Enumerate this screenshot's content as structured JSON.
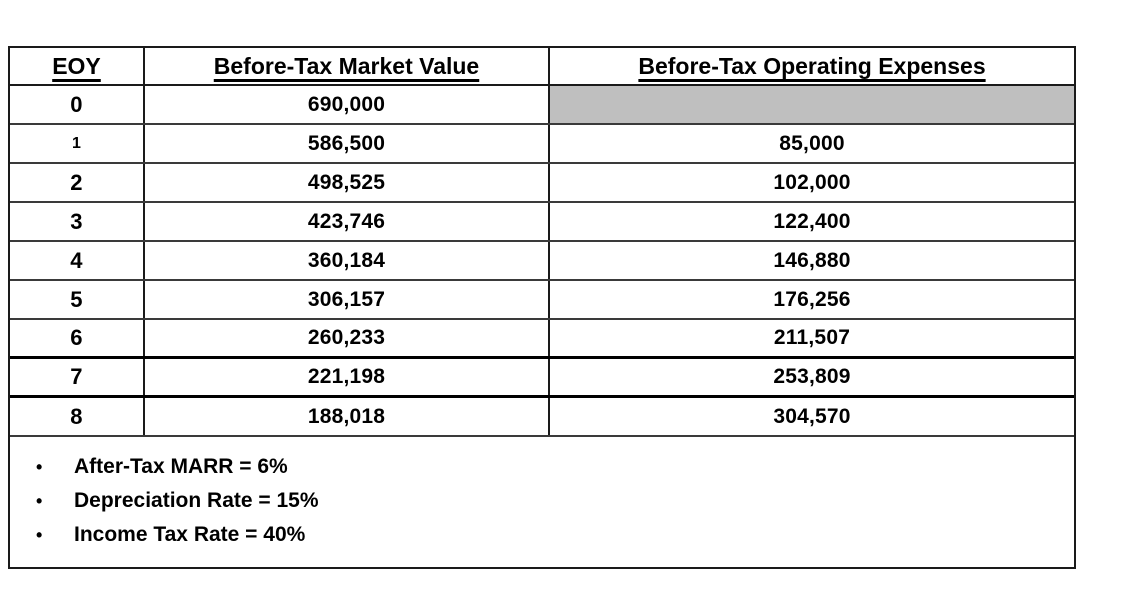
{
  "table": {
    "columns": [
      "EOY",
      "Before-Tax Market Value",
      "Before-Tax Operating Expenses"
    ],
    "rows": [
      {
        "eoy": "0",
        "market_value": "690,000",
        "operating_expenses": ""
      },
      {
        "eoy": "1",
        "market_value": "586,500",
        "operating_expenses": "85,000"
      },
      {
        "eoy": "2",
        "market_value": "498,525",
        "operating_expenses": "102,000"
      },
      {
        "eoy": "3",
        "market_value": "423,746",
        "operating_expenses": "122,400"
      },
      {
        "eoy": "4",
        "market_value": "360,184",
        "operating_expenses": "146,880"
      },
      {
        "eoy": "5",
        "market_value": "306,157",
        "operating_expenses": "176,256"
      },
      {
        "eoy": "6",
        "market_value": "260,233",
        "operating_expenses": "211,507"
      },
      {
        "eoy": "7",
        "market_value": "221,198",
        "operating_expenses": "253,809"
      },
      {
        "eoy": "8",
        "market_value": "188,018",
        "operating_expenses": "304,570"
      }
    ]
  },
  "notes": {
    "bullet": "•",
    "items": [
      "After-Tax MARR = 6%",
      "Depreciation Rate = 15%",
      "Income Tax Rate = 40%"
    ]
  },
  "colors": {
    "shaded_cell": "#bfbfbf",
    "border": "#1a1a1a",
    "text": "#000000"
  }
}
